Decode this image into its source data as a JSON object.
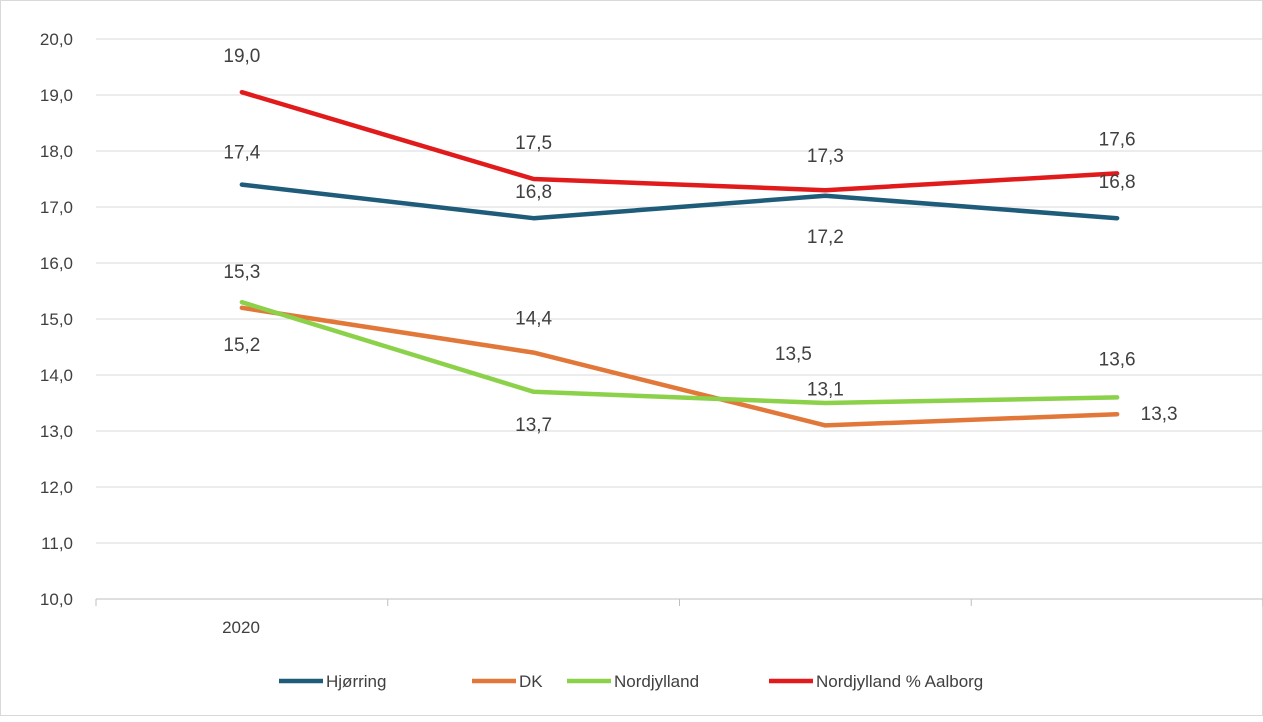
{
  "chart_data": {
    "type": "line",
    "title": "",
    "xlabel": "",
    "ylabel": "",
    "x": [
      "2020",
      "",
      "",
      ""
    ],
    "ylim": [
      10,
      20
    ],
    "yticks": [
      "10,0",
      "11,0",
      "12,0",
      "13,0",
      "14,0",
      "15,0",
      "16,0",
      "17,0",
      "18,0",
      "19,0",
      "20,0"
    ],
    "grid": true,
    "legend_position": "bottom",
    "series": [
      {
        "name": "Hjørring",
        "color": "#1f5c7a",
        "values": [
          17.4,
          16.8,
          17.2,
          16.8
        ],
        "labels": [
          "17,4",
          "16,8",
          "17,2",
          "16,8"
        ]
      },
      {
        "name": "DK",
        "color": "#e2773a",
        "values": [
          15.2,
          14.4,
          13.1,
          13.3
        ],
        "labels": [
          "15,2",
          "14,4",
          "13,1",
          "13,3"
        ]
      },
      {
        "name": "Nordjylland",
        "color": "#8bd14a",
        "values": [
          15.3,
          13.7,
          13.5,
          13.6
        ],
        "labels": [
          "15,3",
          "13,7",
          "13,5",
          "13,6"
        ]
      },
      {
        "name": "Nordjylland % Aalborg",
        "color": "#e11b1b",
        "values": [
          19.05,
          17.5,
          17.3,
          17.6
        ],
        "labels": [
          "19,0",
          "17,5",
          "17,3",
          "17,6"
        ]
      }
    ]
  }
}
